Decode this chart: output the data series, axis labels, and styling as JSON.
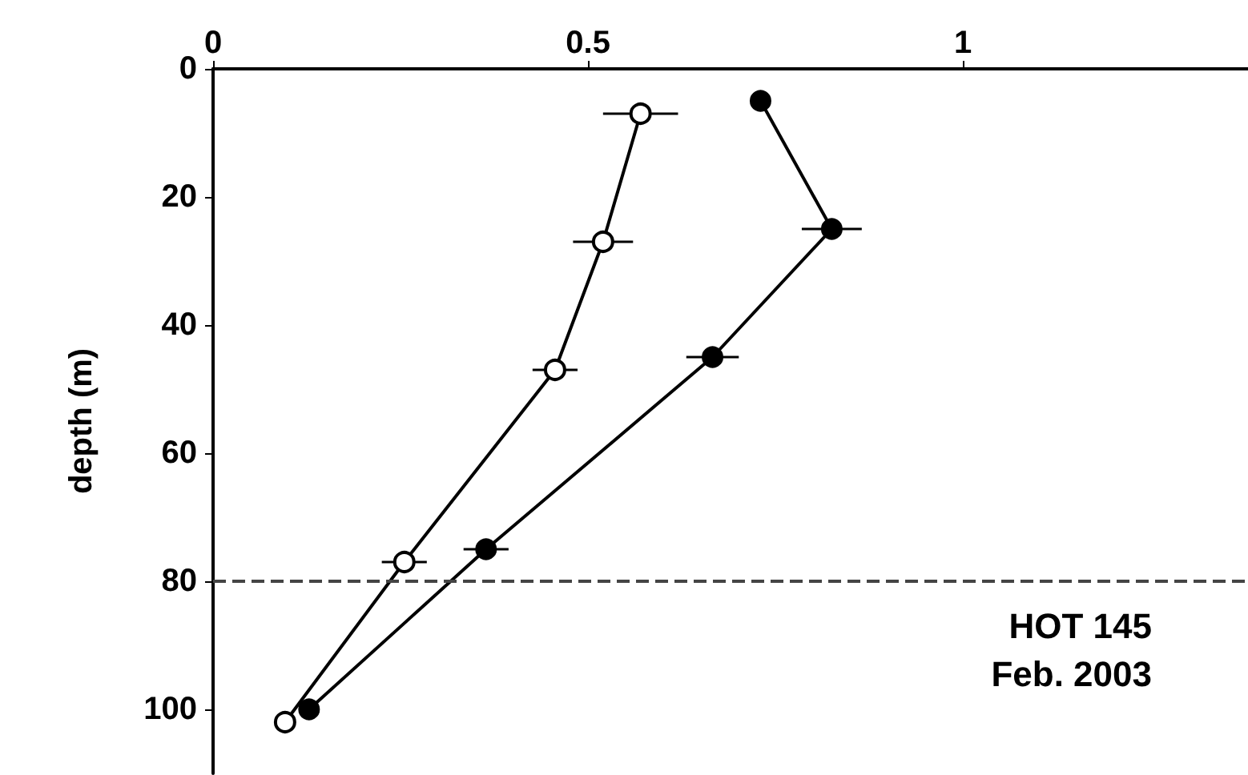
{
  "chart_data": {
    "type": "line",
    "ylabel": "depth (m)",
    "series": [
      {
        "color": "#000000",
        "x": [
          0.57,
          0.52,
          0.456,
          0.255,
          0.096
        ],
        "values": [
          7,
          27,
          47,
          77,
          102
        ],
        "xerrors": [
          0.05,
          0.04,
          0.03,
          0.03,
          null
        ]
      },
      {
        "color": "#000000",
        "x": [
          0.73,
          0.825,
          0.666,
          0.364,
          0.128
        ],
        "values": [
          5,
          25,
          45,
          75,
          100
        ],
        "xerrors": [
          0.01,
          0.04,
          0.035,
          0.03,
          null
        ]
      }
    ],
    "xlim": [
      0,
      1.38
    ],
    "xticks": [
      0,
      0.5,
      1
    ],
    "ylim": [
      110,
      0
    ],
    "yticks": [
      0,
      20,
      40,
      60,
      80,
      100
    ],
    "ref_lines": [
      {
        "axis": "y",
        "value": 80,
        "line_style": "dashed"
      }
    ],
    "annotations": [
      "HOT 145",
      "Feb. 2003"
    ],
    "grid": false,
    "marker": "circle",
    "line_style": "solid"
  }
}
